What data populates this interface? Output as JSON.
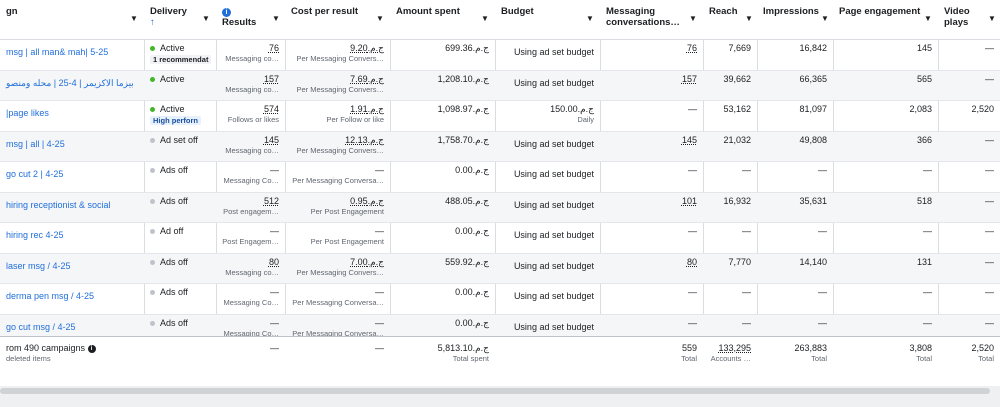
{
  "headers": {
    "name": "gn",
    "delivery": "Delivery",
    "delivery_sort": "↑",
    "results_info": "i",
    "results": "Results",
    "cost": "Cost per result",
    "spent": "Amount spent",
    "budget": "Budget",
    "messaging1": "Messaging",
    "messaging2": "conversations…",
    "reach": "Reach",
    "impressions": "Impressions",
    "engagement": "Page engagement",
    "video1": "Video",
    "video2": "plays"
  },
  "rows": [
    {
      "name": "msg | all man& mah| 5-25",
      "status": "on",
      "delivery": "Active",
      "badge": "1 recommendat",
      "badge_style": "plain",
      "results": "76",
      "results_sub": "Messaging co…",
      "cost": "ج.م.9.20",
      "cost_sub": "Per Messaging Convers…",
      "spent": "ج.م.699.36",
      "budget": "Using ad set budget",
      "budget_sub": "",
      "msg": "76",
      "reach": "7,669",
      "impr": "16,842",
      "eng": "145",
      "video": "—"
    },
    {
      "name": "بيزما الاكزيمر | 4-25 | محله ومنصو",
      "status": "on",
      "delivery": "Active",
      "badge": "",
      "badge_style": "",
      "results": "157",
      "results_sub": "Messaging co…",
      "cost": "ج.م.7.69",
      "cost_sub": "Per Messaging Convers…",
      "spent": "ج.م.1,208.10",
      "budget": "Using ad set budget",
      "budget_sub": "",
      "msg": "157",
      "reach": "39,662",
      "impr": "66,365",
      "eng": "565",
      "video": "—"
    },
    {
      "name": "|page likes",
      "status": "on",
      "delivery": "Active",
      "badge": "High perforn",
      "badge_style": "blue",
      "results": "574",
      "results_sub": "Follows or likes",
      "cost": "ج.م.1.91",
      "cost_sub": "Per Follow or like",
      "spent": "ج.م.1,098.97",
      "budget": "ج.م.150.00",
      "budget_sub": "Daily",
      "msg": "—",
      "reach": "53,162",
      "impr": "81,097",
      "eng": "2,083",
      "video": "2,520"
    },
    {
      "name": "msg | all | 4-25",
      "status": "off",
      "delivery": "Ad set off",
      "badge": "",
      "badge_style": "",
      "results": "145",
      "results_sub": "Messaging co…",
      "cost": "ج.م.12.13",
      "cost_sub": "Per Messaging Convers…",
      "spent": "ج.م.1,758.70",
      "budget": "Using ad set budget",
      "budget_sub": "",
      "msg": "145",
      "reach": "21,032",
      "impr": "49,808",
      "eng": "366",
      "video": "—"
    },
    {
      "name": "go cut 2 | 4-25",
      "status": "off",
      "delivery": "Ads off",
      "badge": "",
      "badge_style": "",
      "results": "—",
      "results_sub": "Messaging Co…",
      "cost": "—",
      "cost_sub": "Per Messaging Conversa…",
      "spent": "ج.م.0.00",
      "budget": "Using ad set budget",
      "budget_sub": "",
      "msg": "—",
      "reach": "—",
      "impr": "—",
      "eng": "—",
      "video": "—"
    },
    {
      "name": "hiring receptionist & social",
      "status": "off",
      "delivery": "Ads off",
      "badge": "",
      "badge_style": "",
      "results": "512",
      "results_sub": "Post engagem…",
      "cost": "ج.م.0.95",
      "cost_sub": "Per Post Engagement",
      "spent": "ج.م.488.05",
      "budget": "Using ad set budget",
      "budget_sub": "",
      "msg": "101",
      "reach": "16,932",
      "impr": "35,631",
      "eng": "518",
      "video": "—"
    },
    {
      "name": "hiring rec 4-25",
      "status": "off",
      "delivery": "Ad off",
      "badge": "",
      "badge_style": "",
      "results": "—",
      "results_sub": "Post Engagem…",
      "cost": "—",
      "cost_sub": "Per Post Engagement",
      "spent": "ج.م.0.00",
      "budget": "Using ad set budget",
      "budget_sub": "",
      "msg": "—",
      "reach": "—",
      "impr": "—",
      "eng": "—",
      "video": "—"
    },
    {
      "name": "laser msg / 4-25",
      "status": "off",
      "delivery": "Ads off",
      "badge": "",
      "badge_style": "",
      "results": "80",
      "results_sub": "Messaging co…",
      "cost": "ج.م.7.00",
      "cost_sub": "Per Messaging Convers…",
      "spent": "ج.م.559.92",
      "budget": "Using ad set budget",
      "budget_sub": "",
      "msg": "80",
      "reach": "7,770",
      "impr": "14,140",
      "eng": "131",
      "video": "—"
    },
    {
      "name": "derma pen msg / 4-25",
      "status": "off",
      "delivery": "Ads off",
      "badge": "",
      "badge_style": "",
      "results": "—",
      "results_sub": "Messaging Co…",
      "cost": "—",
      "cost_sub": "Per Messaging Conversa…",
      "spent": "ج.م.0.00",
      "budget": "Using ad set budget",
      "budget_sub": "",
      "msg": "—",
      "reach": "—",
      "impr": "—",
      "eng": "—",
      "video": "—"
    },
    {
      "name": "go cut msg / 4-25",
      "status": "off",
      "delivery": "Ads off",
      "badge": "",
      "badge_style": "",
      "results": "—",
      "results_sub": "Messaging Co…",
      "cost": "—",
      "cost_sub": "Per Messaging Conversa…",
      "spent": "ج.م.0.00",
      "budget": "Using ad set budget",
      "budget_sub": "",
      "msg": "—",
      "reach": "—",
      "impr": "—",
      "eng": "—",
      "video": "—"
    }
  ],
  "totals": {
    "label": "rom 490 campaigns",
    "sub": "deleted items",
    "results": "—",
    "cost": "—",
    "spent": "ج.م.5,813.10",
    "spent_sub": "Total spent",
    "msg": "559",
    "msg_sub": "Total",
    "reach": "133,295",
    "reach_sub": "Accounts …",
    "impr": "263,883",
    "impr_sub": "Total",
    "eng": "3,808",
    "eng_sub": "Total",
    "video": "2,520",
    "video_sub": "Total"
  },
  "colors": {
    "active": "#42b72a",
    "inactive": "#bec3c9",
    "link": "#216fdb"
  }
}
